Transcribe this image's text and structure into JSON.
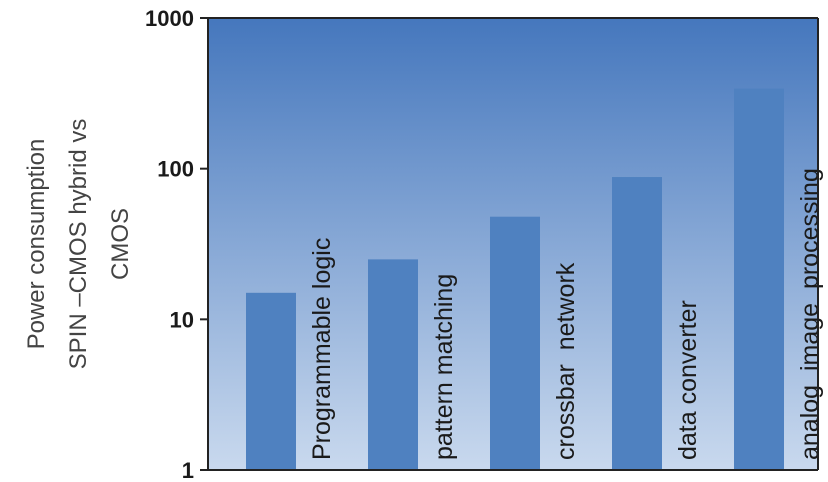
{
  "chart_data": {
    "type": "bar",
    "categories": [
      "Programmable logic",
      "pattern matching",
      "crossbar  network",
      "data converter",
      "analog  image  processing"
    ],
    "values": [
      15,
      25,
      48,
      88,
      340
    ],
    "yscale": "log",
    "ylim": [
      1,
      1000
    ],
    "yticks": [
      1,
      10,
      100,
      1000
    ],
    "ytick_labels": [
      "1",
      "10",
      "100",
      "1000"
    ],
    "ylabel_lines": [
      "Power consumption",
      "SPIN –CMOS hybrid vs",
      "CMOS"
    ],
    "xlabel": "",
    "title": "",
    "grid": false,
    "colors": {
      "bar": "#4f81c0",
      "plot_bg_top": "#4577bd",
      "plot_bg_bottom": "#c9d9ee"
    }
  }
}
